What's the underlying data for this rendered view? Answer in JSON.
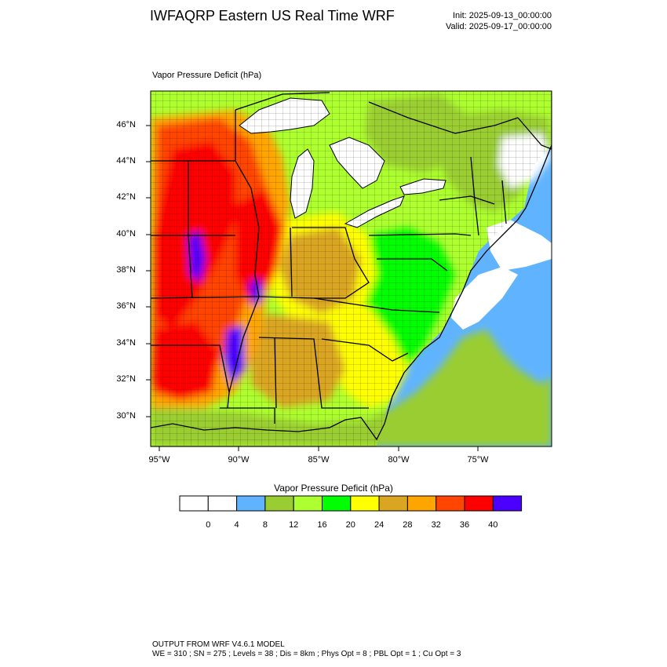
{
  "header": {
    "title": "IWFAQRP Eastern US Real Time WRF",
    "init": "Init: 2025-09-13_00:00:00",
    "valid": "Valid: 2025-09-17_00:00:00"
  },
  "field_label": "Vapor Pressure Deficit   (hPa)",
  "map": {
    "lat_labels": [
      "46°N",
      "44°N",
      "42°N",
      "40°N",
      "38°N",
      "36°N",
      "34°N",
      "32°N",
      "30°N"
    ],
    "lon_labels": [
      "95°W",
      "90°W",
      "85°W",
      "80°W",
      "75°W"
    ],
    "lake_color": "#ffffff",
    "border_color": "#000000"
  },
  "colorbar": {
    "title": "Vapor Pressure Deficit  (hPa)",
    "tick_labels": [
      "0",
      "4",
      "8",
      "12",
      "16",
      "20",
      "24",
      "28",
      "32",
      "36",
      "40"
    ],
    "colors": [
      "#ffffff",
      "#ffffff",
      "#60b4ff",
      "#9acd32",
      "#adff2f",
      "#00ff00",
      "#ffff00",
      "#daa520",
      "#ffa500",
      "#ff4500",
      "#ff0000",
      "#4b00ff"
    ]
  },
  "footer": {
    "line1": "OUTPUT FROM WRF V4.6.1 MODEL",
    "line2": "WE = 310 ; SN = 275 ; Levels = 38 ; Dis = 8km ; Phys Opt = 8 ; PBL Opt = 1 ; Cu Opt = 3"
  }
}
